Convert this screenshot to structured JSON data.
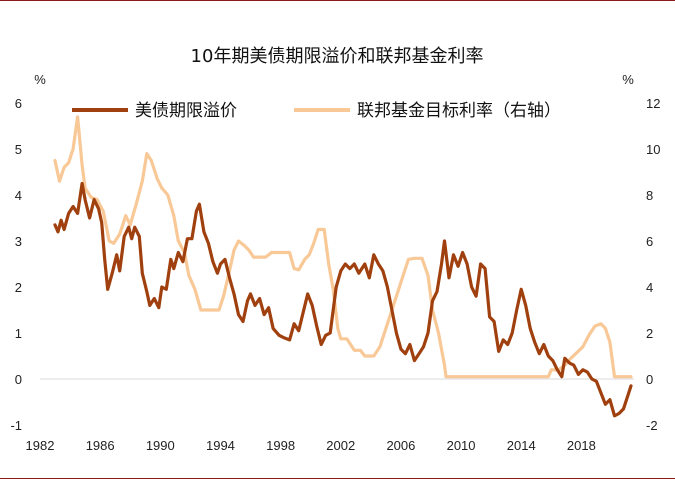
{
  "chart_data": {
    "type": "line",
    "title": "10年期美债期限溢价和联邦基金利率",
    "left_unit": "%",
    "right_unit": "%",
    "xlim": [
      1982,
      2021.5
    ],
    "ylim_left": [
      -1,
      6
    ],
    "ylim_right": [
      -2,
      12
    ],
    "x_ticks": [
      1982,
      1986,
      1990,
      1994,
      1998,
      2002,
      2006,
      2010,
      2014,
      2018
    ],
    "y_ticks_left": [
      -1,
      0,
      1,
      2,
      3,
      4,
      5,
      6
    ],
    "y_ticks_right": [
      -2,
      0,
      2,
      4,
      6,
      8,
      10,
      12
    ],
    "legend_position": "top",
    "series": [
      {
        "name": "美债期限溢价",
        "axis": "left",
        "color": "#a0400e",
        "points": [
          [
            1983.0,
            3.35
          ],
          [
            1983.2,
            3.2
          ],
          [
            1983.4,
            3.45
          ],
          [
            1983.6,
            3.25
          ],
          [
            1983.9,
            3.6
          ],
          [
            1984.2,
            3.75
          ],
          [
            1984.5,
            3.6
          ],
          [
            1984.8,
            4.25
          ],
          [
            1985.0,
            3.9
          ],
          [
            1985.3,
            3.5
          ],
          [
            1985.6,
            3.9
          ],
          [
            1985.9,
            3.7
          ],
          [
            1986.1,
            3.4
          ],
          [
            1986.3,
            2.6
          ],
          [
            1986.5,
            1.95
          ],
          [
            1986.8,
            2.3
          ],
          [
            1987.1,
            2.7
          ],
          [
            1987.3,
            2.35
          ],
          [
            1987.6,
            3.1
          ],
          [
            1987.9,
            3.3
          ],
          [
            1988.1,
            3.05
          ],
          [
            1988.3,
            3.3
          ],
          [
            1988.6,
            3.1
          ],
          [
            1988.8,
            2.3
          ],
          [
            1989.1,
            1.9
          ],
          [
            1989.3,
            1.6
          ],
          [
            1989.6,
            1.75
          ],
          [
            1989.9,
            1.55
          ],
          [
            1990.1,
            2.0
          ],
          [
            1990.4,
            1.95
          ],
          [
            1990.7,
            2.6
          ],
          [
            1990.9,
            2.4
          ],
          [
            1991.2,
            2.75
          ],
          [
            1991.5,
            2.55
          ],
          [
            1991.8,
            3.05
          ],
          [
            1992.1,
            3.05
          ],
          [
            1992.4,
            3.65
          ],
          [
            1992.6,
            3.8
          ],
          [
            1992.9,
            3.2
          ],
          [
            1993.2,
            2.95
          ],
          [
            1993.5,
            2.55
          ],
          [
            1993.8,
            2.3
          ],
          [
            1994.0,
            2.5
          ],
          [
            1994.3,
            2.6
          ],
          [
            1994.6,
            2.2
          ],
          [
            1994.9,
            1.85
          ],
          [
            1995.2,
            1.4
          ],
          [
            1995.5,
            1.25
          ],
          [
            1995.8,
            1.7
          ],
          [
            1996.0,
            1.85
          ],
          [
            1996.3,
            1.6
          ],
          [
            1996.6,
            1.75
          ],
          [
            1996.9,
            1.4
          ],
          [
            1997.2,
            1.55
          ],
          [
            1997.5,
            1.1
          ],
          [
            1997.9,
            0.95
          ],
          [
            1998.2,
            0.9
          ],
          [
            1998.6,
            0.85
          ],
          [
            1998.9,
            1.2
          ],
          [
            1999.2,
            1.05
          ],
          [
            1999.5,
            1.45
          ],
          [
            1999.8,
            1.85
          ],
          [
            2000.1,
            1.6
          ],
          [
            2000.4,
            1.15
          ],
          [
            2000.7,
            0.75
          ],
          [
            2001.0,
            0.95
          ],
          [
            2001.3,
            1.0
          ],
          [
            2001.7,
            2.0
          ],
          [
            2002.0,
            2.35
          ],
          [
            2002.3,
            2.5
          ],
          [
            2002.6,
            2.4
          ],
          [
            2002.9,
            2.5
          ],
          [
            2003.2,
            2.3
          ],
          [
            2003.6,
            2.5
          ],
          [
            2003.9,
            2.2
          ],
          [
            2004.2,
            2.7
          ],
          [
            2004.5,
            2.5
          ],
          [
            2004.8,
            2.35
          ],
          [
            2005.1,
            2.0
          ],
          [
            2005.4,
            1.5
          ],
          [
            2005.7,
            1.0
          ],
          [
            2006.0,
            0.65
          ],
          [
            2006.3,
            0.55
          ],
          [
            2006.6,
            0.75
          ],
          [
            2006.9,
            0.4
          ],
          [
            2007.2,
            0.55
          ],
          [
            2007.5,
            0.7
          ],
          [
            2007.8,
            1.0
          ],
          [
            2008.1,
            1.7
          ],
          [
            2008.4,
            1.9
          ],
          [
            2008.7,
            2.5
          ],
          [
            2008.9,
            3.0
          ],
          [
            2009.2,
            2.2
          ],
          [
            2009.5,
            2.7
          ],
          [
            2009.8,
            2.45
          ],
          [
            2010.1,
            2.75
          ],
          [
            2010.4,
            2.5
          ],
          [
            2010.7,
            2.0
          ],
          [
            2011.0,
            1.8
          ],
          [
            2011.3,
            2.5
          ],
          [
            2011.6,
            2.4
          ],
          [
            2011.9,
            1.35
          ],
          [
            2012.2,
            1.25
          ],
          [
            2012.5,
            0.6
          ],
          [
            2012.8,
            0.85
          ],
          [
            2013.1,
            0.75
          ],
          [
            2013.4,
            1.0
          ],
          [
            2013.7,
            1.5
          ],
          [
            2014.0,
            1.95
          ],
          [
            2014.3,
            1.6
          ],
          [
            2014.6,
            1.1
          ],
          [
            2014.9,
            0.8
          ],
          [
            2015.2,
            0.55
          ],
          [
            2015.5,
            0.75
          ],
          [
            2015.8,
            0.5
          ],
          [
            2016.1,
            0.4
          ],
          [
            2016.4,
            0.2
          ],
          [
            2016.7,
            0.05
          ],
          [
            2016.9,
            0.45
          ],
          [
            2017.2,
            0.35
          ],
          [
            2017.5,
            0.3
          ],
          [
            2017.8,
            0.1
          ],
          [
            2018.1,
            0.2
          ],
          [
            2018.4,
            0.15
          ],
          [
            2018.7,
            0.0
          ],
          [
            2019.0,
            -0.05
          ],
          [
            2019.3,
            -0.3
          ],
          [
            2019.6,
            -0.55
          ],
          [
            2019.9,
            -0.45
          ],
          [
            2020.2,
            -0.8
          ],
          [
            2020.5,
            -0.75
          ],
          [
            2020.8,
            -0.65
          ],
          [
            2021.1,
            -0.35
          ],
          [
            2021.3,
            -0.15
          ]
        ]
      },
      {
        "name": "联邦基金目标利率（右轴）",
        "axis": "right",
        "color": "#f8c897",
        "points": [
          [
            1983.0,
            9.5
          ],
          [
            1983.3,
            8.6
          ],
          [
            1983.6,
            9.2
          ],
          [
            1983.9,
            9.4
          ],
          [
            1984.2,
            10.0
          ],
          [
            1984.5,
            11.4
          ],
          [
            1984.8,
            9.3
          ],
          [
            1985.0,
            8.3
          ],
          [
            1985.4,
            7.9
          ],
          [
            1985.8,
            7.8
          ],
          [
            1986.2,
            7.3
          ],
          [
            1986.6,
            6.0
          ],
          [
            1986.9,
            5.9
          ],
          [
            1987.3,
            6.3
          ],
          [
            1987.7,
            7.1
          ],
          [
            1988.0,
            6.7
          ],
          [
            1988.4,
            7.6
          ],
          [
            1988.8,
            8.6
          ],
          [
            1989.1,
            9.8
          ],
          [
            1989.4,
            9.5
          ],
          [
            1989.8,
            8.7
          ],
          [
            1990.1,
            8.3
          ],
          [
            1990.5,
            8.0
          ],
          [
            1990.9,
            7.1
          ],
          [
            1991.2,
            6.0
          ],
          [
            1991.6,
            5.5
          ],
          [
            1991.9,
            4.5
          ],
          [
            1992.3,
            3.9
          ],
          [
            1992.7,
            3.0
          ],
          [
            1993.0,
            3.0
          ],
          [
            1993.5,
            3.0
          ],
          [
            1993.9,
            3.0
          ],
          [
            1994.2,
            3.6
          ],
          [
            1994.6,
            4.7
          ],
          [
            1994.9,
            5.6
          ],
          [
            1995.2,
            6.0
          ],
          [
            1995.6,
            5.8
          ],
          [
            1995.9,
            5.6
          ],
          [
            1996.2,
            5.3
          ],
          [
            1996.6,
            5.3
          ],
          [
            1997.0,
            5.3
          ],
          [
            1997.4,
            5.5
          ],
          [
            1997.8,
            5.5
          ],
          [
            1998.2,
            5.5
          ],
          [
            1998.6,
            5.5
          ],
          [
            1998.9,
            4.8
          ],
          [
            1999.2,
            4.75
          ],
          [
            1999.6,
            5.2
          ],
          [
            1999.9,
            5.4
          ],
          [
            2000.2,
            5.9
          ],
          [
            2000.5,
            6.5
          ],
          [
            2000.9,
            6.5
          ],
          [
            2001.2,
            5.0
          ],
          [
            2001.5,
            3.9
          ],
          [
            2001.8,
            2.2
          ],
          [
            2002.0,
            1.75
          ],
          [
            2002.4,
            1.75
          ],
          [
            2002.9,
            1.25
          ],
          [
            2003.3,
            1.25
          ],
          [
            2003.6,
            1.0
          ],
          [
            2004.2,
            1.0
          ],
          [
            2004.6,
            1.4
          ],
          [
            2004.9,
            2.0
          ],
          [
            2005.3,
            2.8
          ],
          [
            2005.7,
            3.6
          ],
          [
            2006.1,
            4.4
          ],
          [
            2006.5,
            5.2
          ],
          [
            2006.9,
            5.25
          ],
          [
            2007.4,
            5.25
          ],
          [
            2007.8,
            4.5
          ],
          [
            2008.1,
            3.0
          ],
          [
            2008.5,
            2.0
          ],
          [
            2008.9,
            0.6
          ],
          [
            2009.0,
            0.1
          ],
          [
            2010.0,
            0.1
          ],
          [
            2012.0,
            0.1
          ],
          [
            2014.0,
            0.1
          ],
          [
            2015.8,
            0.1
          ],
          [
            2016.0,
            0.4
          ],
          [
            2016.5,
            0.4
          ],
          [
            2016.9,
            0.6
          ],
          [
            2017.3,
            0.9
          ],
          [
            2017.7,
            1.15
          ],
          [
            2018.1,
            1.4
          ],
          [
            2018.5,
            1.9
          ],
          [
            2018.9,
            2.3
          ],
          [
            2019.3,
            2.4
          ],
          [
            2019.6,
            2.2
          ],
          [
            2019.9,
            1.6
          ],
          [
            2020.2,
            0.1
          ],
          [
            2021.3,
            0.1
          ]
        ]
      }
    ]
  }
}
